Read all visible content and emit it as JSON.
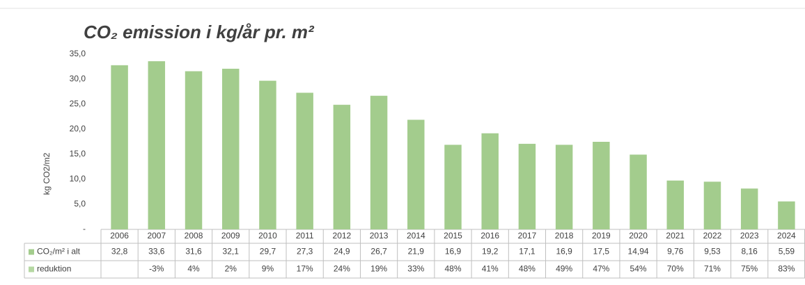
{
  "chart_data": {
    "type": "bar",
    "title": "CO₂ emission i kg/år pr. m²",
    "y_label": "kg CO2/m2",
    "categories": [
      "2006",
      "2007",
      "2008",
      "2009",
      "2010",
      "2011",
      "2012",
      "2013",
      "2014",
      "2015",
      "2016",
      "2017",
      "2018",
      "2019",
      "2020",
      "2021",
      "2022",
      "2023",
      "2024"
    ],
    "series": [
      {
        "name": "CO₂/m² i alt",
        "color": "#a3cc8d",
        "values": [
          32.8,
          33.6,
          31.6,
          32.1,
          29.7,
          27.3,
          24.9,
          26.7,
          21.9,
          16.9,
          19.2,
          17.1,
          16.9,
          17.5,
          14.94,
          9.76,
          9.53,
          8.16,
          5.59
        ],
        "value_labels": [
          "32,8",
          "33,6",
          "31,6",
          "32,1",
          "29,7",
          "27,3",
          "24,9",
          "26,7",
          "21,9",
          "16,9",
          "19,2",
          "17,1",
          "16,9",
          "17,5",
          "14,94",
          "9,76",
          "9,53",
          "8,16",
          "5,59"
        ]
      }
    ],
    "table_rows": [
      {
        "name": "reduktion",
        "color": "#b5d8a2",
        "values": [
          null,
          -3,
          4,
          2,
          9,
          17,
          24,
          19,
          33,
          48,
          41,
          48,
          49,
          47,
          54,
          70,
          71,
          75,
          83
        ],
        "value_labels": [
          null,
          "-3%",
          "4%",
          "2%",
          "9%",
          "17%",
          "24%",
          "19%",
          "33%",
          "48%",
          "41%",
          "48%",
          "49%",
          "47%",
          "54%",
          "70%",
          "71%",
          "75%",
          "83%"
        ]
      }
    ],
    "ylim": [
      0,
      35
    ],
    "yticks": [
      {
        "value": 0,
        "label": "-"
      },
      {
        "value": 5,
        "label": "5,0"
      },
      {
        "value": 10,
        "label": "10,0"
      },
      {
        "value": 15,
        "label": "15,0"
      },
      {
        "value": 20,
        "label": "20,0"
      },
      {
        "value": 25,
        "label": "25,0"
      },
      {
        "value": 30,
        "label": "30,0"
      },
      {
        "value": 35,
        "label": "35,0"
      }
    ]
  }
}
